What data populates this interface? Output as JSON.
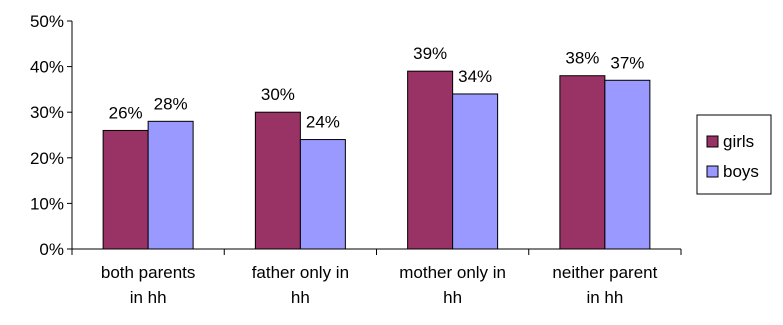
{
  "chart_data": {
    "type": "bar",
    "title": "",
    "xlabel": "",
    "ylabel": "",
    "categories": [
      [
        "both parents",
        "in hh"
      ],
      [
        "father only in",
        "hh"
      ],
      [
        "mother only in",
        "hh"
      ],
      [
        "neither parent",
        "in hh"
      ]
    ],
    "series": [
      {
        "name": "girls",
        "values": [
          26,
          30,
          39,
          38
        ],
        "labels": [
          "26%",
          "30%",
          "39%",
          "38%"
        ],
        "color": "#993366"
      },
      {
        "name": "boys",
        "values": [
          28,
          24,
          34,
          37
        ],
        "labels": [
          "28%",
          "24%",
          "34%",
          "37%"
        ],
        "color": "#9999ff"
      }
    ],
    "ylim": [
      0,
      50
    ],
    "yticks": [
      "0%",
      "10%",
      "20%",
      "30%",
      "40%",
      "50%"
    ],
    "ytick_values": [
      0,
      10,
      20,
      30,
      40,
      50
    ],
    "grid": false,
    "legend_position": "right"
  }
}
